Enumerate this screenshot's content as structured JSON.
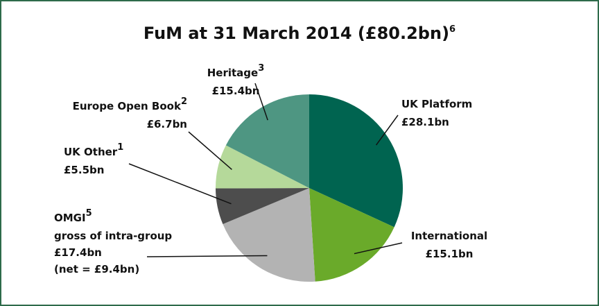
{
  "chart_data": {
    "type": "pie",
    "title": "FuM at 31 March 2014 (£80.2bn)",
    "title_footnote": "6",
    "categories": [
      "UK Platform",
      "International",
      "OMGI",
      "UK Other",
      "Europe Open Book",
      "Heritage"
    ],
    "footnotes": [
      null,
      null,
      "5",
      "1",
      "2",
      "3"
    ],
    "values": [
      28.1,
      15.1,
      17.4,
      5.5,
      6.7,
      15.4
    ],
    "value_labels": [
      "£28.1bn",
      "£15.1bn",
      "£17.4bn",
      "£5.5bn",
      "£6.7bn",
      "£15.4bn"
    ],
    "colors": [
      "#006450",
      "#6aaa2a",
      "#b3b3b3",
      "#4d4d4d",
      "#b5d99a",
      "#4e9682"
    ],
    "annotations": [
      "gross of intra-group",
      "(net = £9.4bn)"
    ]
  }
}
